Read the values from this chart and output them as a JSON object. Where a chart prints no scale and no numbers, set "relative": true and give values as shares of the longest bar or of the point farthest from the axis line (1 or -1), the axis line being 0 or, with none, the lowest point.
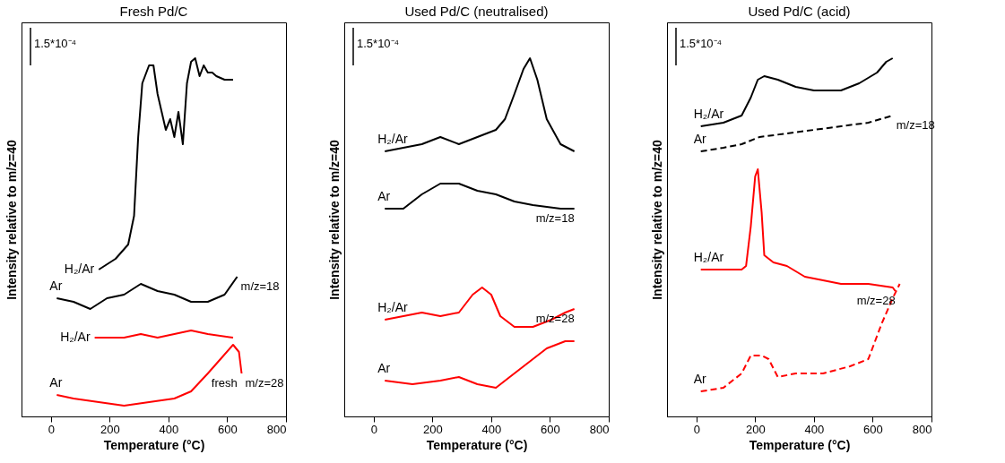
{
  "chart_data": [
    {
      "type": "line",
      "title": "Fresh Pd/C",
      "xlabel": "Temperature (°C)",
      "ylabel": "Intensity relative to m/z=40",
      "relative": true,
      "grid": false,
      "legend": false,
      "tick_labels": "x",
      "xlim": [
        -100,
        800
      ],
      "xticks": [
        0,
        200,
        400,
        600,
        800
      ],
      "annotations": [
        "1.5*10⁻⁴",
        {
          "text": "m/z=18",
          "x": 634,
          "y": 0.39
        },
        {
          "text": "m/z=28",
          "x": 649,
          "y": 0.12
        },
        {
          "text": "fresh",
          "x": 534,
          "y": 0.12
        }
      ],
      "series": [
        {
          "name": "H₂/Ar",
          "color": "#000000",
          "x": [
            163,
            220,
            263,
            283,
            297,
            311,
            334,
            349,
            363,
            377,
            391,
            406,
            420,
            434,
            449,
            463,
            477,
            491,
            506,
            520,
            534,
            549,
            563,
            591,
            620
          ],
          "values": [
            0.41,
            0.44,
            0.48,
            0.56,
            0.78,
            0.93,
            0.98,
            0.98,
            0.9,
            0.85,
            0.8,
            0.83,
            0.78,
            0.85,
            0.76,
            0.93,
            0.99,
            1.0,
            0.95,
            0.98,
            0.96,
            0.96,
            0.95,
            0.94,
            0.94
          ]
        },
        {
          "name": "Ar",
          "color": "#000000",
          "x": [
            20,
            77,
            134,
            191,
            249,
            306,
            363,
            420,
            477,
            534,
            591,
            634
          ],
          "values": [
            0.33,
            0.32,
            0.3,
            0.33,
            0.34,
            0.37,
            0.35,
            0.34,
            0.32,
            0.32,
            0.34,
            0.39
          ]
        },
        {
          "name": "H₂/Ar",
          "color": "#ff0000",
          "x": [
            149,
            249,
            306,
            363,
            420,
            477,
            534,
            620
          ],
          "values": [
            0.22,
            0.22,
            0.23,
            0.22,
            0.23,
            0.24,
            0.23,
            0.22
          ]
        },
        {
          "name": "Ar",
          "color": "#ff0000",
          "x": [
            20,
            77,
            163,
            249,
            334,
            420,
            477,
            534,
            577,
            620,
            640,
            649
          ],
          "values": [
            0.06,
            0.05,
            0.04,
            0.03,
            0.04,
            0.05,
            0.07,
            0.12,
            0.16,
            0.2,
            0.18,
            0.12
          ]
        }
      ]
    },
    {
      "type": "line",
      "title": "Used Pd/C (neutralised)",
      "xlabel": "Temperature (°C)",
      "ylabel": "Intensity relative to m/z=40",
      "relative": true,
      "grid": false,
      "legend": false,
      "tick_labels": "x",
      "xlim": [
        -100,
        800
      ],
      "xticks": [
        0,
        200,
        400,
        600,
        800
      ],
      "annotations": [
        "1.5*10⁻⁴",
        {
          "text": "m/z=18",
          "x": 683,
          "y": 0.58
        },
        {
          "text": "m/z=28",
          "x": 683,
          "y": 0.3
        }
      ],
      "series": [
        {
          "name": "H₂/Ar",
          "color": "#000000",
          "x": [
            38,
            101,
            164,
            227,
            290,
            353,
            416,
            447,
            479,
            510,
            532,
            557,
            589,
            636,
            683
          ],
          "values": [
            0.74,
            0.75,
            0.76,
            0.78,
            0.76,
            0.78,
            0.8,
            0.83,
            0.9,
            0.97,
            1.0,
            0.94,
            0.83,
            0.76,
            0.74
          ]
        },
        {
          "name": "Ar",
          "color": "#000000",
          "x": [
            38,
            101,
            164,
            227,
            290,
            353,
            416,
            479,
            542,
            636,
            683
          ],
          "values": [
            0.58,
            0.58,
            0.62,
            0.65,
            0.65,
            0.63,
            0.62,
            0.6,
            0.59,
            0.58,
            0.58
          ]
        },
        {
          "name": "H₂/Ar",
          "color": "#ff0000",
          "x": [
            38,
            101,
            164,
            227,
            290,
            337,
            369,
            400,
            431,
            479,
            542,
            605,
            652,
            683
          ],
          "values": [
            0.27,
            0.28,
            0.29,
            0.28,
            0.29,
            0.34,
            0.36,
            0.34,
            0.28,
            0.25,
            0.25,
            0.27,
            0.29,
            0.3
          ]
        },
        {
          "name": "Ar",
          "color": "#ff0000",
          "x": [
            38,
            132,
            227,
            290,
            353,
            416,
            463,
            526,
            589,
            652,
            683
          ],
          "values": [
            0.1,
            0.09,
            0.1,
            0.11,
            0.09,
            0.08,
            0.11,
            0.15,
            0.19,
            0.21,
            0.21
          ]
        }
      ]
    },
    {
      "type": "line",
      "title": "Used Pd/C (acid)",
      "xlabel": "Temperature (°C)",
      "ylabel": "Intensity relative to m/z=40",
      "relative": true,
      "grid": false,
      "legend": false,
      "tick_labels": "x",
      "xlim": [
        -100,
        800
      ],
      "xticks": [
        0,
        200,
        400,
        600,
        800
      ],
      "annotations": [
        "1.5*10⁻⁴",
        {
          "text": "m/z=18",
          "x": 668,
          "y": 0.84
        },
        {
          "text": "m/z=28",
          "x": 677,
          "y": 0.35
        }
      ],
      "series": [
        {
          "name": "H₂/Ar",
          "color": "#000000",
          "x": [
            15,
            92,
            154,
            185,
            209,
            231,
            277,
            338,
            400,
            492,
            554,
            615,
            646,
            668
          ],
          "values": [
            0.81,
            0.82,
            0.84,
            0.89,
            0.94,
            0.95,
            0.94,
            0.92,
            0.91,
            0.91,
            0.93,
            0.96,
            0.99,
            1.0
          ]
        },
        {
          "name": "Ar",
          "color": "#000000",
          "line_style": "dashed",
          "x": [
            15,
            92,
            154,
            215,
            308,
            400,
            492,
            585,
            668
          ],
          "values": [
            0.74,
            0.75,
            0.76,
            0.78,
            0.79,
            0.8,
            0.81,
            0.82,
            0.84
          ]
        },
        {
          "name": "H₂/Ar",
          "color": "#ff0000",
          "x": [
            15,
            92,
            154,
            169,
            185,
            200,
            209,
            222,
            231,
            262,
            308,
            369,
            431,
            492,
            585,
            668,
            677
          ],
          "values": [
            0.41,
            0.41,
            0.41,
            0.42,
            0.53,
            0.67,
            0.69,
            0.57,
            0.45,
            0.43,
            0.42,
            0.39,
            0.38,
            0.37,
            0.37,
            0.36,
            0.35
          ]
        },
        {
          "name": "Ar",
          "color": "#ff0000",
          "line_style": "dashed",
          "x": [
            15,
            92,
            154,
            185,
            222,
            246,
            277,
            338,
            431,
            523,
            585,
            631,
            668,
            692
          ],
          "values": [
            0.07,
            0.08,
            0.12,
            0.17,
            0.17,
            0.16,
            0.11,
            0.12,
            0.12,
            0.14,
            0.16,
            0.26,
            0.33,
            0.37
          ]
        }
      ]
    }
  ]
}
